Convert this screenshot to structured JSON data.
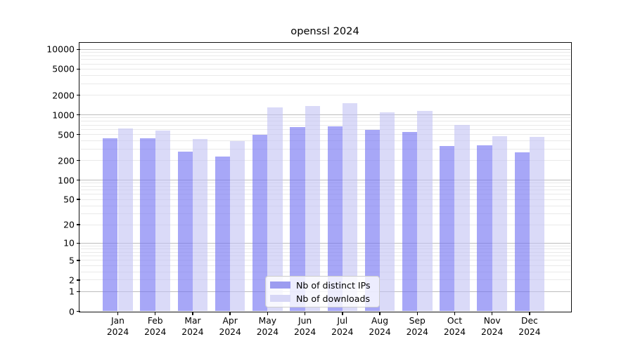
{
  "chart_data": {
    "type": "bar",
    "title": "openssl 2024",
    "categories": [
      "Jan",
      "Feb",
      "Mar",
      "Apr",
      "May",
      "Jun",
      "Jul",
      "Aug",
      "Sep",
      "Oct",
      "Nov",
      "Dec"
    ],
    "category_year": "2024",
    "series": [
      {
        "name": "Nb of distinct IPs",
        "values": [
          435,
          440,
          275,
          230,
          500,
          650,
          660,
          590,
          550,
          335,
          345,
          270
        ],
        "fill": "rgba(113,113,242,0.62)",
        "legend_color": "#9c9cf0"
      },
      {
        "name": "Nb of downloads",
        "values": [
          620,
          580,
          430,
          400,
          1300,
          1370,
          1500,
          1090,
          1150,
          700,
          470,
          460
        ],
        "fill": "rgba(193,193,243,0.60)",
        "legend_color": "#d7d7f6"
      }
    ],
    "y_ticks": [
      0,
      1,
      2,
      5,
      10,
      20,
      50,
      100,
      200,
      500,
      1000,
      2000,
      5000,
      10000
    ],
    "scale": "log1p",
    "ylim": [
      0,
      12600
    ],
    "xlabel": "",
    "ylabel": "",
    "grid": "on",
    "gridline_major_color": "#bdbdbd",
    "gridline_minor_color": "#e9e9e9",
    "legend_position": "lower center"
  }
}
